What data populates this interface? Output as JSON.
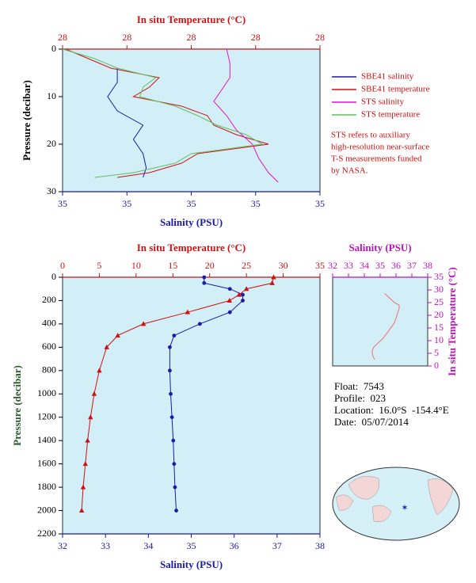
{
  "chart_data": [
    {
      "type": "line",
      "xlabel": "Salinity (PSU)",
      "x2label": "In situ Temperature (°C)",
      "ylabel": "Pressure (decibar)",
      "x_axis_position": "bottom",
      "y_axis_position": "left",
      "y_inverted": true,
      "x_color": "#1a1aa6",
      "x2_color": "#d01010",
      "y_color": "#000000",
      "ylabel_color": "#000000",
      "xlim": [
        34.96,
        35.04
      ],
      "xticks": [
        {
          "value": 34.96,
          "label": "35"
        },
        {
          "value": 34.98,
          "label": "35"
        },
        {
          "value": 35.0,
          "label": "35"
        },
        {
          "value": 35.02,
          "label": "35"
        },
        {
          "value": 35.04,
          "label": "35"
        }
      ],
      "x2lim": [
        27.6,
        28.4
      ],
      "x2ticks": [
        {
          "value": 27.6,
          "label": "28"
        },
        {
          "value": 27.8,
          "label": "28"
        },
        {
          "value": 28.0,
          "label": "28"
        },
        {
          "value": 28.2,
          "label": "28"
        },
        {
          "value": 28.4,
          "label": "28"
        }
      ],
      "ylim": [
        0,
        30
      ],
      "yticks": [
        0,
        10,
        20,
        30
      ],
      "legend": "right",
      "series": [
        {
          "name": "SBE41 salinity",
          "color": "#1a1aa6",
          "x": [
            34.977,
            34.977,
            34.974,
            34.977,
            34.985,
            34.982,
            34.985,
            34.986,
            34.985
          ],
          "y": [
            4,
            7,
            10,
            13,
            16,
            19,
            22,
            25,
            27
          ]
        },
        {
          "name": "SBE41 temperature",
          "color": "#d01010",
          "axis": "x2",
          "x": [
            27.61,
            27.68,
            27.75,
            27.9,
            27.87,
            27.82,
            27.97,
            28.05,
            28.07,
            28.14,
            28.24,
            28.02,
            27.97,
            27.87,
            27.77
          ],
          "y": [
            0,
            2,
            4,
            6,
            8,
            10,
            12,
            14,
            16,
            18,
            20,
            22,
            24,
            26,
            27
          ]
        },
        {
          "name": "STS salinity",
          "color": "#e010d0",
          "x": [
            35.011,
            35.012,
            35.012,
            35.009,
            35.007,
            35.011,
            35.014,
            35.019,
            35.021,
            35.024,
            35.027
          ],
          "y": [
            0,
            3,
            6,
            9,
            11,
            14,
            17,
            20,
            23,
            26,
            28
          ]
        },
        {
          "name": "STS temperature",
          "color": "#60c060",
          "axis": "x2",
          "x": [
            27.6,
            27.7,
            27.77,
            27.89,
            27.85,
            27.84,
            27.95,
            28.02,
            28.08,
            28.17,
            28.22,
            28.0,
            27.95,
            27.82,
            27.7
          ],
          "y": [
            0,
            2,
            4,
            6,
            8,
            10,
            12,
            14,
            16,
            18,
            20,
            22,
            24,
            26,
            27
          ]
        }
      ],
      "note": [
        "STS refers to auxiliary",
        "high-resolution near-surface",
        "T-S measurements funded",
        "by NASA."
      ]
    },
    {
      "type": "line",
      "xlabel": "Salinity (PSU)",
      "x2label": "In situ Temperature (°C)",
      "ylabel": "Pressure (decibar)",
      "x_axis_position": "bottom",
      "y_axis_position": "left",
      "y_inverted": true,
      "x_color": "#1a1aa6",
      "x2_color": "#d01010",
      "y_color": "#000000",
      "ylabel_color": "#2a5a2a",
      "xlim": [
        32,
        38
      ],
      "xticks": [
        32,
        33,
        34,
        35,
        36,
        37,
        38
      ],
      "x2lim": [
        0,
        35
      ],
      "x2ticks": [
        0,
        5,
        10,
        15,
        20,
        25,
        30,
        35
      ],
      "ylim": [
        0,
        2200
      ],
      "yticks": [
        0,
        200,
        400,
        600,
        800,
        1000,
        1200,
        1400,
        1600,
        1800,
        2000,
        2200
      ],
      "series": [
        {
          "color": "#1a1aa6",
          "marker": "circle",
          "x": [
            35.3,
            35.3,
            35.9,
            36.2,
            36.2,
            35.9,
            35.2,
            34.6,
            34.5,
            34.5,
            34.52,
            34.55,
            34.58,
            34.6,
            34.62,
            34.65
          ],
          "y": [
            0,
            50,
            100,
            150,
            200,
            300,
            400,
            500,
            600,
            800,
            1000,
            1200,
            1400,
            1600,
            1800,
            2000
          ]
        },
        {
          "color": "#d01010",
          "axis": "x2",
          "marker": "triangle",
          "x": [
            28.7,
            28.5,
            25.0,
            24.0,
            22.7,
            17.0,
            11.0,
            7.5,
            6.0,
            5.0,
            4.3,
            3.8,
            3.4,
            3.1,
            2.8,
            2.6
          ],
          "y": [
            0,
            50,
            100,
            150,
            200,
            300,
            400,
            500,
            600,
            800,
            1000,
            1200,
            1400,
            1600,
            1800,
            2000
          ]
        }
      ]
    },
    {
      "type": "line",
      "xlabel": "Salinity (PSU)",
      "ylabel": "In situ Temperature (°C)",
      "x_axis_position": "top",
      "y_axis_position": "right",
      "y_inverted": false,
      "x_color": "#c010c0",
      "y_color": "#c010c0",
      "ylabel_color": "#c010c0",
      "xlim": [
        32,
        38
      ],
      "xticks": [
        32,
        33,
        34,
        35,
        36,
        37,
        38
      ],
      "ylim": [
        0,
        35
      ],
      "yticks": [
        0,
        5,
        10,
        15,
        20,
        25,
        30,
        35
      ],
      "series": [
        {
          "color": "#f07070",
          "x": [
            35.3,
            35.3,
            35.9,
            36.2,
            36.2,
            35.9,
            35.2,
            34.6,
            34.5,
            34.5,
            34.52,
            34.55,
            34.58,
            34.6,
            34.62,
            34.65
          ],
          "y": [
            28.7,
            28.5,
            25.0,
            24.0,
            22.7,
            17.0,
            11.0,
            7.5,
            6.0,
            5.0,
            4.3,
            3.8,
            3.4,
            3.1,
            2.8,
            2.6
          ]
        }
      ]
    }
  ],
  "info": {
    "float": "Float:  7543",
    "profile": "Profile:  023",
    "location": "Location:  16.0°S  -154.4°E",
    "date": "Date:  05/07/2014"
  }
}
